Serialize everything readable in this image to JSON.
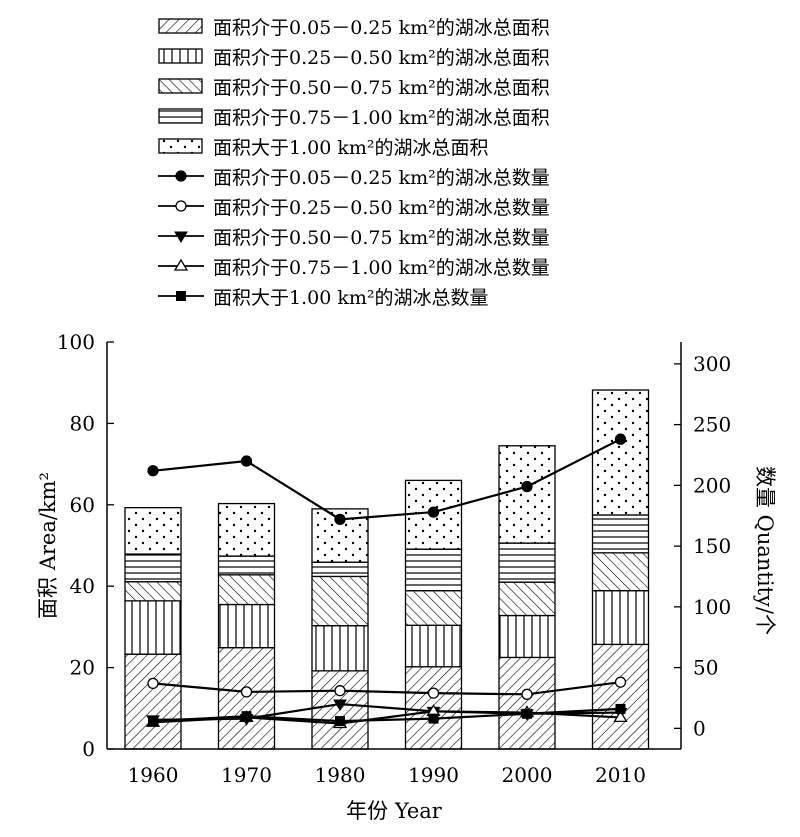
{
  "chart_data": {
    "type": "bar",
    "x_axis": {
      "label": "年份 Year",
      "categories": [
        "1960",
        "1970",
        "1980",
        "1990",
        "2000",
        "2010"
      ]
    },
    "y_left": {
      "label": "面积 Area/km²",
      "range": [
        0,
        100
      ],
      "ticks": [
        "0",
        "20",
        "40",
        "60",
        "80",
        "100"
      ]
    },
    "y_right": {
      "label": "数量 Quantity/个",
      "range": [
        -17,
        318
      ],
      "ticks": [
        "0",
        "50",
        "100",
        "150",
        "200",
        "250",
        "300"
      ]
    },
    "grid": false,
    "legend_position": "top",
    "area_series": [
      {
        "name": "面积介于0.05－0.25 km²的湖冰总面积",
        "pattern": "diagonal-forward",
        "values": [
          23.3,
          24.9,
          19.2,
          20.2,
          22.5,
          25.7
        ]
      },
      {
        "name": "面积介于0.25－0.50 km²的湖冰总面积",
        "pattern": "vertical-lines",
        "values": [
          13.1,
          10.6,
          11.1,
          10.2,
          10.3,
          13.2
        ]
      },
      {
        "name": "面积介于0.50－0.75 km²的湖冰总面积",
        "pattern": "diagonal-backward",
        "values": [
          4.7,
          7.3,
          12.1,
          8.5,
          8.2,
          9.3
        ]
      },
      {
        "name": "面积介于0.75－1.00 km²的湖冰总面积",
        "pattern": "horizontal-lines",
        "values": [
          6.8,
          4.6,
          3.5,
          10.2,
          9.6,
          9.3
        ]
      },
      {
        "name": "面积大于1.00 km²的湖冰总面积",
        "pattern": "dots",
        "values": [
          11.4,
          12.9,
          13.1,
          16.9,
          23.9,
          30.7
        ]
      }
    ],
    "count_series": [
      {
        "name": "面积介于0.05－0.25 km²的湖冰总数量",
        "marker": "filled-circle",
        "values": [
          212,
          220,
          172,
          178,
          199,
          238
        ]
      },
      {
        "name": "面积介于0.25－0.50 km²的湖冰总数量",
        "marker": "open-circle",
        "values": [
          37,
          30,
          31,
          29,
          28,
          38
        ]
      },
      {
        "name": "面积介于0.50－0.75 km²的湖冰总数量",
        "marker": "filled-triangle-down",
        "values": [
          7,
          8,
          20,
          14,
          12,
          13
        ]
      },
      {
        "name": "面积介于0.75－1.00 km²的湖冰总数量",
        "marker": "open-triangle-up",
        "values": [
          5,
          9,
          4,
          14,
          13,
          9
        ]
      },
      {
        "name": "面积大于1.00 km²的湖冰总数量",
        "marker": "filled-square",
        "values": [
          6,
          10,
          6,
          8,
          12,
          16
        ]
      }
    ],
    "colors": {
      "ink": "#000000",
      "paper": "#ffffff"
    }
  }
}
